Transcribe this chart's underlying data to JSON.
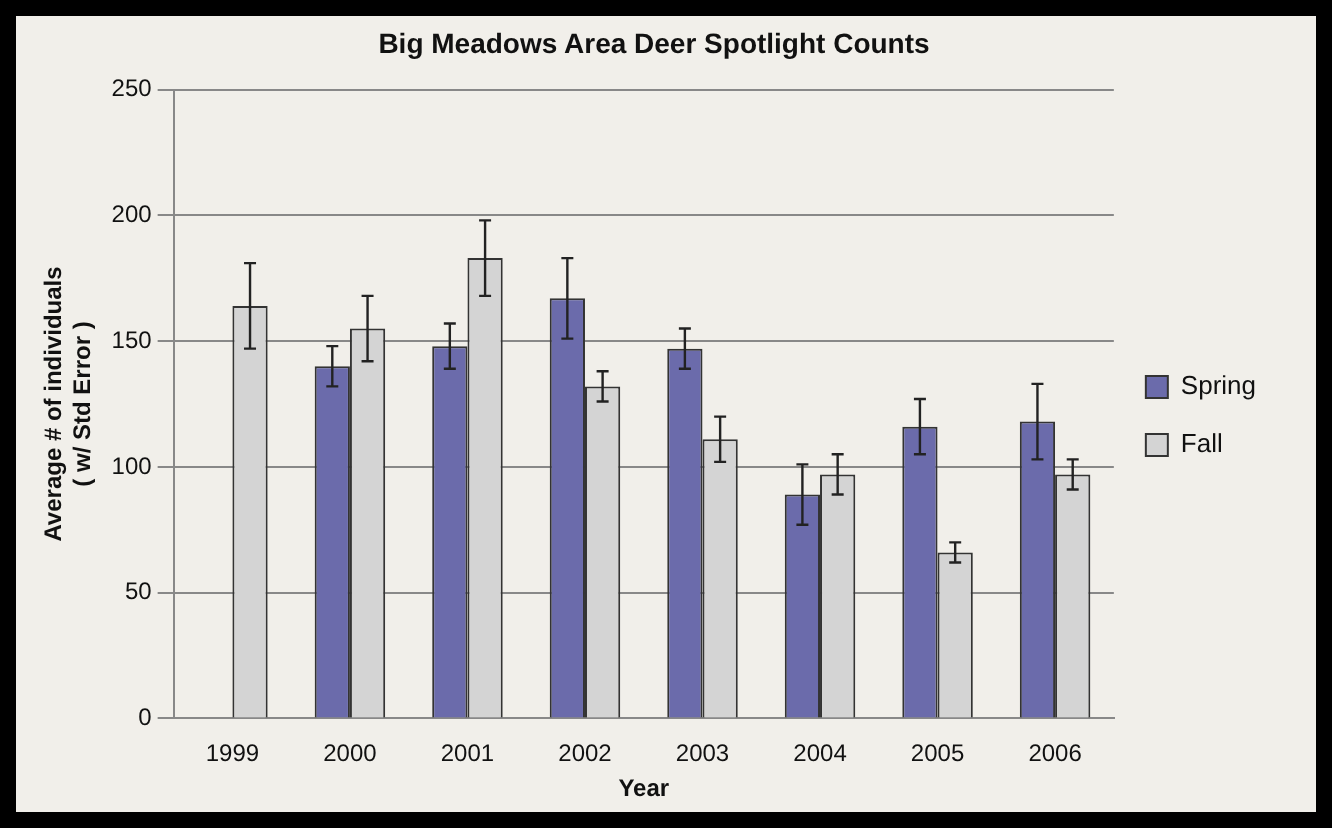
{
  "chart_data": {
    "type": "bar",
    "title": "Big Meadows Area Deer Spotlight Counts",
    "xlabel": "Year",
    "ylabel": "Average # of individuals\n( w/ Std Error )",
    "categories": [
      "1999",
      "2000",
      "2001",
      "2002",
      "2003",
      "2004",
      "2005",
      "2006"
    ],
    "series": [
      {
        "name": "Spring",
        "color": "#6b6bab",
        "values": [
          null,
          140,
          148,
          167,
          147,
          89,
          116,
          118
        ],
        "errors": [
          null,
          8,
          9,
          16,
          8,
          12,
          11,
          15
        ]
      },
      {
        "name": "Fall",
        "color": "#d4d4d4",
        "values": [
          164,
          155,
          183,
          132,
          111,
          97,
          66,
          97
        ],
        "errors": [
          17,
          13,
          15,
          6,
          9,
          8,
          4,
          6
        ]
      }
    ],
    "ylim": [
      0,
      250
    ],
    "yticks": [
      0,
      50,
      100,
      150,
      200,
      250
    ],
    "grid": "y",
    "legend": "right"
  }
}
